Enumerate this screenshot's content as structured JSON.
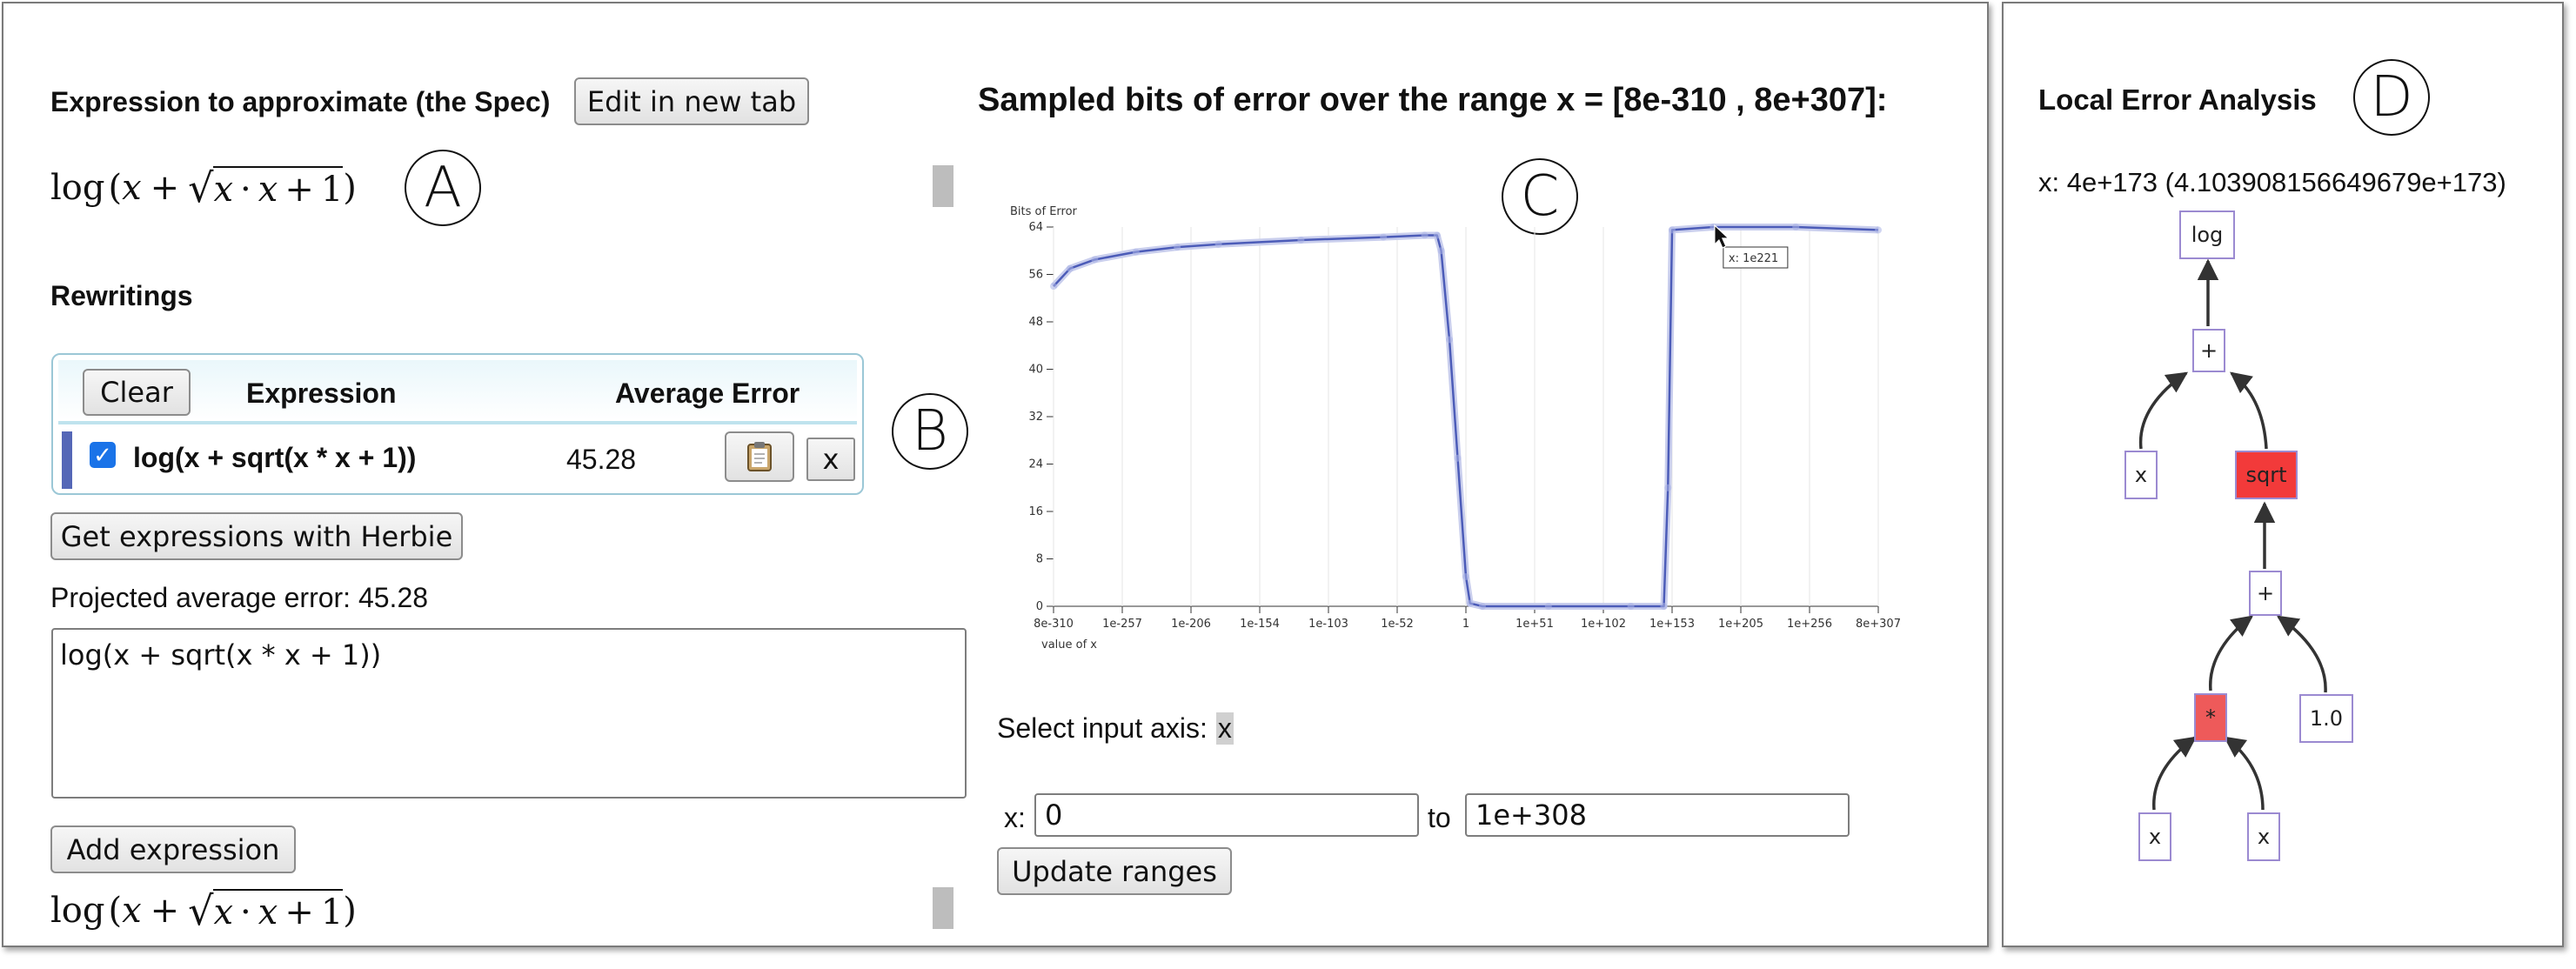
{
  "spec": {
    "heading": "Expression to approximate (the Spec)",
    "edit_button": "Edit in new tab",
    "math_fn": "log",
    "math_x1": "x",
    "math_plus": "+",
    "math_x2": "x",
    "math_dot": "·",
    "math_x3": "x",
    "math_plus2": "+",
    "math_one": "1"
  },
  "labels": {
    "A": "A",
    "B": "B",
    "C": "C",
    "D": "D"
  },
  "rewritings": {
    "heading": "Rewritings",
    "clear_button": "Clear",
    "col_expression": "Expression",
    "col_average_error": "Average Error",
    "rows": [
      {
        "expression": "log(x + sqrt(x * x + 1))",
        "error": "45.28",
        "checked": true,
        "copy_icon": "clipboard-icon",
        "remove_label": "x"
      }
    ],
    "get_button": "Get expressions with Herbie",
    "projected": "Projected average error: 45.28",
    "textarea_value": "log(x + sqrt(x * x + 1))",
    "add_button": "Add expression"
  },
  "chart": {
    "title": "Sampled bits of error over the range x = [8e-310 , 8e+307]:",
    "select_axis_label": "Select input axis:",
    "select_axis_value": "x",
    "range_label": "x:",
    "range_from": "0",
    "range_to_label": "to",
    "range_to": "1e+308",
    "update_button": "Update ranges",
    "tooltip": "x: 1e221"
  },
  "chart_data": {
    "type": "line",
    "title": "Sampled bits of error over the range x = [8e-310 , 8e+307]:",
    "ylabel": "Bits of Error",
    "xlabel": "value of x",
    "ylim": [
      0,
      64
    ],
    "yticks": [
      "0",
      "8",
      "16",
      "24",
      "32",
      "40",
      "48",
      "56",
      "64"
    ],
    "xticks": [
      "8e-310",
      "1e-257",
      "1e-206",
      "1e-154",
      "1e-103",
      "1e-52",
      "1",
      "1e+51",
      "1e+102",
      "1e+153",
      "1e+205",
      "1e+256",
      "8e+307"
    ],
    "grid": true,
    "series": [
      {
        "values": [
          [
            0,
            54
          ],
          [
            0.02,
            57
          ],
          [
            0.05,
            58.5
          ],
          [
            0.1,
            59.8
          ],
          [
            0.15,
            60.6
          ],
          [
            0.2,
            61.1
          ],
          [
            0.3,
            61.8
          ],
          [
            0.4,
            62.3
          ],
          [
            0.45,
            62.6
          ],
          [
            0.465,
            62.6
          ],
          [
            0.47,
            60
          ],
          [
            0.48,
            45
          ],
          [
            0.49,
            25
          ],
          [
            0.5,
            5
          ],
          [
            0.505,
            0.5
          ],
          [
            0.52,
            0
          ],
          [
            0.6,
            0
          ],
          [
            0.7,
            0
          ],
          [
            0.74,
            0
          ],
          [
            0.745,
            20
          ],
          [
            0.75,
            63.5
          ],
          [
            0.8,
            64
          ],
          [
            0.9,
            64
          ],
          [
            1.0,
            63.5
          ]
        ]
      }
    ]
  },
  "local": {
    "heading": "Local Error Analysis",
    "point": "x: 4e+173 (4.103908156649679e+173)",
    "nodes": {
      "log": "log",
      "plus1": "+",
      "x_a": "x",
      "sqrt": "sqrt",
      "plus2": "+",
      "mul": "*",
      "one": "1.0",
      "x_b": "x",
      "x_c": "x"
    },
    "colors": {
      "sqrt": "#f23a3a",
      "mul": "#ee5a5a",
      "edge": "#333333",
      "node_border": "#9b8ad1"
    }
  }
}
